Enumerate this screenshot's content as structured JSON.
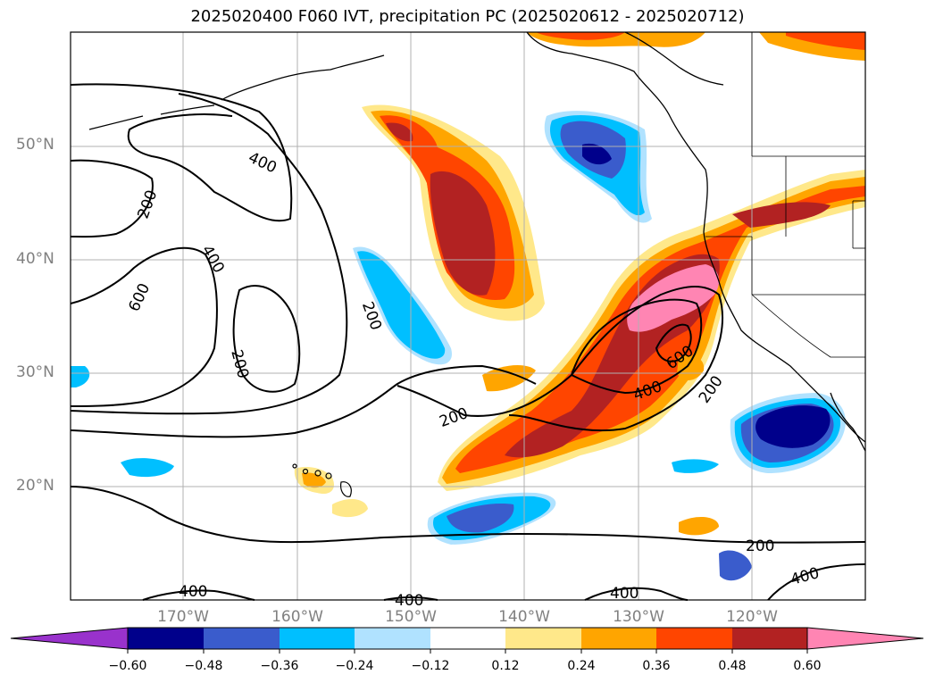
{
  "title": "2025020400 F060 IVT, precipitation PC (2025020612 - 2025020712)",
  "map": {
    "lat_labels": [
      "50°N",
      "40°N",
      "30°N",
      "20°N"
    ],
    "lon_labels": [
      "170°W",
      "160°W",
      "150°W",
      "140°W",
      "130°W",
      "120°W"
    ],
    "contour_labels": [
      "400",
      "200",
      "400",
      "600",
      "200",
      "200",
      "200",
      "600",
      "400",
      "200",
      "200",
      "400",
      "400",
      "400",
      "400"
    ]
  },
  "colorbar": {
    "ticks": [
      "−0.60",
      "−0.48",
      "−0.36",
      "−0.24",
      "−0.12",
      "0.12",
      "0.24",
      "0.36",
      "0.48",
      "0.60"
    ],
    "colors": [
      "#9932cc",
      "#00008b",
      "#3a5ccc",
      "#00bfff",
      "#b0e2ff",
      "#ffffff",
      "#ffe88a",
      "#ffa500",
      "#ff4500",
      "#b22222",
      "#ff85b3"
    ]
  },
  "colors": {
    "pink": "#ff85b3",
    "darkred": "#b22222",
    "orangered": "#ff4500",
    "orange": "#ffa500",
    "lightyellow": "#ffe88a",
    "lightblue": "#b0e2ff",
    "deepskyblue": "#00bfff",
    "royalblue": "#3a5ccc",
    "navy": "#00008b"
  }
}
